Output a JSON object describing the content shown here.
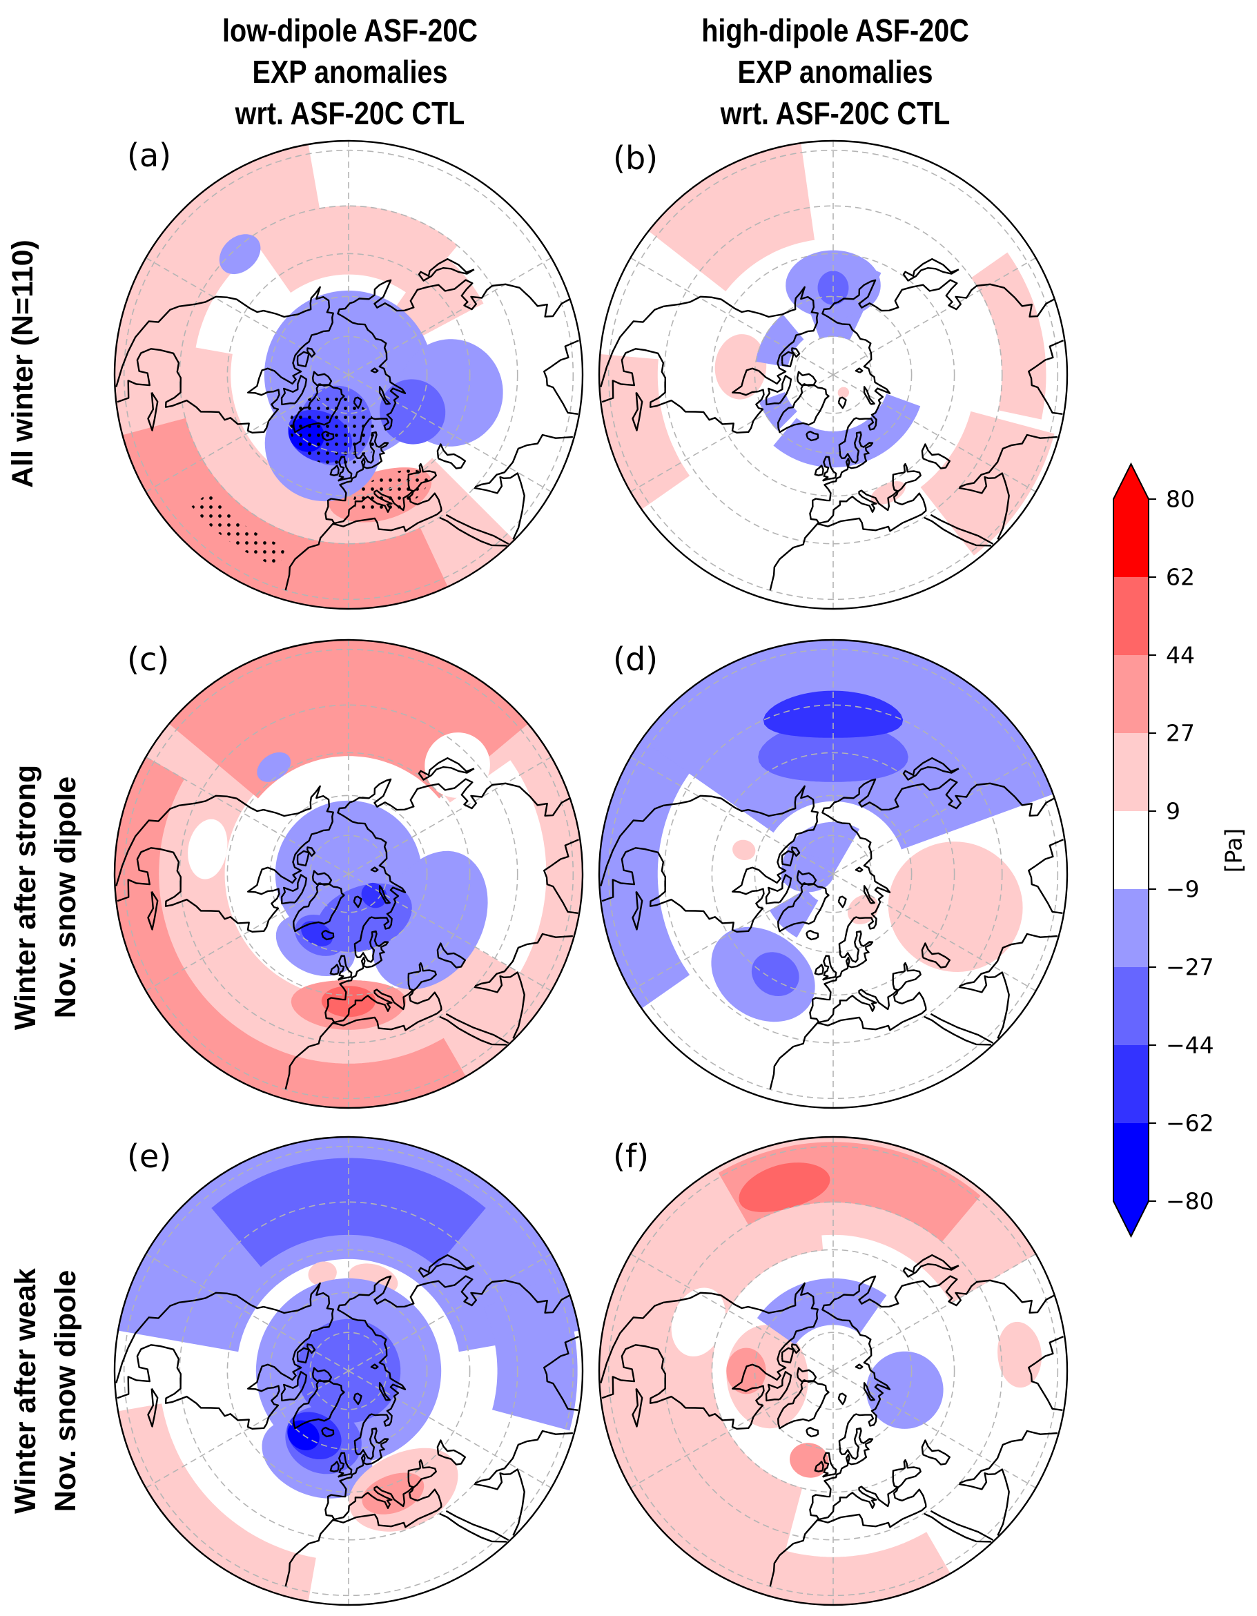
{
  "figure": {
    "column_titles": [
      {
        "lines": [
          "low-dipole ASF-20C",
          "EXP anomalies",
          "wrt. ASF-20C CTL"
        ]
      },
      {
        "lines": [
          "high-dipole ASF-20C",
          "EXP anomalies",
          "wrt. ASF-20C CTL"
        ]
      }
    ],
    "row_labels": [
      {
        "lines": [
          "All winter (N=110)"
        ]
      },
      {
        "lines": [
          "Winter after strong",
          "Nov. snow dipole"
        ]
      },
      {
        "lines": [
          "Winter after weak",
          "Nov. snow dipole"
        ]
      }
    ]
  },
  "chart_data": {
    "type": "heatmap",
    "subtype": "north-polar stereographic anomaly maps (2 columns x 3 rows)",
    "title": "EXP anomalies wrt. ASF-20C CTL",
    "colorbar": {
      "levels": [
        -80,
        -62,
        -44,
        -27,
        -9,
        9,
        27,
        44,
        62,
        80
      ],
      "tick_labels": [
        "−80",
        "−62",
        "−44",
        "−27",
        "−9",
        "9",
        "27",
        "44",
        "62",
        "80"
      ],
      "colors": [
        "#0000ff",
        "#3333ff",
        "#6666ff",
        "#9999ff",
        "#ffffff",
        "#ffcccc",
        "#ff9999",
        "#ff6666",
        "#ff0000"
      ],
      "extend": "both",
      "unit_label": "[Pa]",
      "orientation": "vertical",
      "placement": "right"
    },
    "projection": {
      "type": "north-polar-stereographic",
      "greenwich_direction": "down",
      "boundary_latitude": 12.7
    },
    "gridlines": {
      "latitudes": [
        15,
        30,
        45,
        60,
        75
      ],
      "longitudes": [
        0,
        60,
        120,
        180,
        240,
        300
      ],
      "style": "dashed",
      "color": "#b4b4b4"
    },
    "stipple_meaning": "statistically significant",
    "panels": [
      {
        "letter": "(a)",
        "row": 0,
        "col": 0,
        "anomalies": [
          {
            "kind": "band",
            "lon": [
              -170,
              -100
            ],
            "lat": [
              12,
              34
            ],
            "value": 18
          },
          {
            "kind": "band",
            "lon": [
              -100,
              45
            ],
            "lat": [
              12,
              46
            ],
            "value": 18
          },
          {
            "kind": "band",
            "lon": [
              -75,
              25
            ],
            "lat": [
              12,
              30
            ],
            "value": 35
          },
          {
            "kind": "blob",
            "lon": 15,
            "lat": 44,
            "dlat": 8,
            "dlon": 24,
            "value": 35
          },
          {
            "kind": "band",
            "lon": [
              140,
              215
            ],
            "lat": [
              30,
              52
            ],
            "value": 18
          },
          {
            "kind": "band",
            "lon": [
              118,
              145
            ],
            "lat": [
              35,
              58
            ],
            "value": 18
          },
          {
            "kind": "band",
            "lon": [
              -180,
              180
            ],
            "lat": [
              58,
              90
            ],
            "value": -18
          },
          {
            "kind": "blob",
            "lon": -20,
            "lat": 62,
            "dlat": 20,
            "dlon": 45,
            "value": -18
          },
          {
            "kind": "blob",
            "lon": 80,
            "lat": 52,
            "dlat": 18,
            "dlon": 30,
            "value": -18
          },
          {
            "kind": "blob",
            "lon": -138,
            "lat": 32,
            "dlat": 5,
            "dlon": 8,
            "value": -18
          },
          {
            "kind": "blob",
            "lon": -15,
            "lat": 70,
            "dlat": 15,
            "dlon": 40,
            "value": -35
          },
          {
            "kind": "blob",
            "lon": 60,
            "lat": 62,
            "dlat": 12,
            "dlon": 25,
            "value": -35
          },
          {
            "kind": "blob",
            "lon": -25,
            "lat": 64,
            "dlat": 9,
            "dlon": 28,
            "value": -53
          },
          {
            "kind": "blob",
            "lon": -35,
            "lat": 62,
            "dlat": 6,
            "dlon": 14,
            "value": -71
          }
        ],
        "stippling": [
          {
            "kind": "blob",
            "lon": -15,
            "lat": 68,
            "dlat": 13,
            "dlon": 45
          },
          {
            "kind": "blob",
            "lon": 20,
            "lat": 44,
            "dlat": 6,
            "dlon": 18
          },
          {
            "kind": "band",
            "lon": [
              -50,
              -20
            ],
            "lat": [
              20,
              26
            ]
          }
        ]
      },
      {
        "letter": "(b)",
        "row": 0,
        "col": 1,
        "anomalies": [
          {
            "kind": "band",
            "lon": [
              -172,
              -128
            ],
            "lat": [
              12,
              40
            ],
            "value": 18
          },
          {
            "kind": "band",
            "lon": [
              -95,
              -55
            ],
            "lat": [
              12,
              28
            ],
            "value": 18
          },
          {
            "kind": "blob",
            "lon": -95,
            "lat": 55,
            "dlat": 9,
            "dlon": 20,
            "value": 18
          },
          {
            "kind": "band",
            "lon": [
              38,
              75
            ],
            "lat": [
              14,
              38
            ],
            "value": 18
          },
          {
            "kind": "band",
            "lon": [
              78,
              125
            ],
            "lat": [
              18,
              30
            ],
            "value": 18
          },
          {
            "kind": "blob",
            "lon": 25,
            "lat": 42,
            "dlat": 3,
            "dlon": 8,
            "value": 18
          },
          {
            "kind": "band",
            "lon": [
              155,
              200
            ],
            "lat": [
              48,
              75
            ],
            "value": -18
          },
          {
            "kind": "blob",
            "lon": 180,
            "lat": 56,
            "dlat": 12,
            "dlon": 30,
            "value": -18
          },
          {
            "kind": "band",
            "lon": [
              -140,
              -100
            ],
            "lat": [
              60,
              72
            ],
            "value": -18
          },
          {
            "kind": "band",
            "lon": [
              -40,
              70
            ],
            "lat": [
              55,
              68
            ],
            "value": -18
          },
          {
            "kind": "band",
            "lon": [
              -70,
              -45
            ],
            "lat": [
              60,
              70
            ],
            "value": -18
          },
          {
            "kind": "blob",
            "lon": 180,
            "lat": 57,
            "dlat": 6,
            "dlon": 10,
            "value": -35
          },
          {
            "kind": "blob",
            "lon": 30,
            "lat": 82,
            "dlat": 2,
            "dlon": 15,
            "value": 18
          }
        ],
        "stippling": []
      },
      {
        "letter": "(c)",
        "row": 1,
        "col": 0,
        "anomalies": [
          {
            "kind": "band",
            "lon": [
              -180,
              180
            ],
            "lat": [
              12,
              44
            ],
            "value": 18
          },
          {
            "kind": "band",
            "lon": [
              130,
              230
            ],
            "lat": [
              12,
              46
            ],
            "value": 35
          },
          {
            "kind": "band",
            "lon": [
              -120,
              30
            ],
            "lat": [
              12,
              24
            ],
            "value": 35
          },
          {
            "kind": "blob",
            "lon": 0,
            "lat": 42,
            "dlat": 8,
            "dlon": 25,
            "value": 35
          },
          {
            "kind": "blob",
            "lon": 0,
            "lat": 43,
            "dlat": 5,
            "dlon": 12,
            "value": 53
          },
          {
            "kind": "blob",
            "lon": -100,
            "lat": 38,
            "dlat": 6,
            "dlon": 12,
            "value": 0
          },
          {
            "kind": "blob",
            "lon": 135,
            "lat": 35,
            "dlat": 10,
            "dlon": 12,
            "value": 0
          },
          {
            "kind": "band",
            "lon": [
              60,
              125
            ],
            "lat": [
              22,
              46
            ],
            "value": 0
          },
          {
            "kind": "band",
            "lon": [
              -180,
              180
            ],
            "lat": [
              62,
              90
            ],
            "value": -18
          },
          {
            "kind": "blob",
            "lon": 60,
            "lat": 55,
            "dlat": 18,
            "dlon": 45,
            "value": -18
          },
          {
            "kind": "blob",
            "lon": -25,
            "lat": 60,
            "dlat": 10,
            "dlon": 30,
            "value": -18
          },
          {
            "kind": "blob",
            "lon": -145,
            "lat": 42,
            "dlat": 4,
            "dlon": 8,
            "value": -18
          },
          {
            "kind": "blob",
            "lon": 20,
            "lat": 72,
            "dlat": 12,
            "dlon": 60,
            "value": -35
          },
          {
            "kind": "blob",
            "lon": -25,
            "lat": 64,
            "dlat": 7,
            "dlon": 22,
            "value": -35
          },
          {
            "kind": "blob",
            "lon": 50,
            "lat": 77,
            "dlat": 5,
            "dlon": 20,
            "value": -53
          },
          {
            "kind": "blob",
            "lon": -28,
            "lat": 64,
            "dlat": 4,
            "dlon": 14,
            "value": -53
          }
        ],
        "stippling": []
      },
      {
        "letter": "(d)",
        "row": 1,
        "col": 1,
        "anomalies": [
          {
            "kind": "band",
            "lon": [
              110,
              235
            ],
            "lat": [
              12,
              62
            ],
            "value": -18
          },
          {
            "kind": "band",
            "lon": [
              -125,
              -55
            ],
            "lat": [
              12,
              28
            ],
            "value": -18
          },
          {
            "kind": "blob",
            "lon": -35,
            "lat": 45,
            "dlat": 14,
            "dlon": 26,
            "value": -18
          },
          {
            "kind": "blob",
            "lon": -30,
            "lat": 47,
            "dlat": 7,
            "dlon": 12,
            "value": -35
          },
          {
            "kind": "blob",
            "lon": 180,
            "lat": 45,
            "dlat": 10,
            "dlon": 35,
            "value": -35
          },
          {
            "kind": "blob",
            "lon": 180,
            "lat": 33,
            "dlat": 7,
            "dlon": 25,
            "value": -53
          },
          {
            "kind": "band",
            "lon": [
              150,
              280
            ],
            "lat": [
              70,
              90
            ],
            "value": -18
          },
          {
            "kind": "blob",
            "lon": -90,
            "lat": 80,
            "dlat": 10,
            "dlon": 40,
            "value": -18
          },
          {
            "kind": "band",
            "lon": [
              -60,
              -30
            ],
            "lat": [
              62,
              78
            ],
            "value": -18
          },
          {
            "kind": "blob",
            "lon": 75,
            "lat": 45,
            "dlat": 22,
            "dlon": 30,
            "value": 18
          },
          {
            "kind": "blob",
            "lon": 40,
            "lat": 72,
            "dlat": 5,
            "dlon": 20,
            "value": 18
          },
          {
            "kind": "blob",
            "lon": -105,
            "lat": 55,
            "dlat": 4,
            "dlon": 6,
            "value": 18
          }
        ],
        "stippling": []
      },
      {
        "letter": "(e)",
        "row": 2,
        "col": 0,
        "anomalies": [
          {
            "kind": "band",
            "lon": [
              100,
              260
            ],
            "lat": [
              12,
              48
            ],
            "value": -18
          },
          {
            "kind": "band",
            "lon": [
              140,
              220
            ],
            "lat": [
              18,
              40
            ],
            "value": -35
          },
          {
            "kind": "blob",
            "lon": 165,
            "lat": 54,
            "dlat": 5,
            "dlon": 15,
            "value": 18
          },
          {
            "kind": "blob",
            "lon": -165,
            "lat": 52,
            "dlat": 4,
            "dlon": 8,
            "value": 18
          },
          {
            "kind": "band",
            "lon": [
              75,
              115
            ],
            "lat": [
              14,
              36
            ],
            "value": -18
          },
          {
            "kind": "band",
            "lon": [
              -180,
              180
            ],
            "lat": [
              55,
              90
            ],
            "value": -18
          },
          {
            "kind": "blob",
            "lon": -20,
            "lat": 55,
            "dlat": 13,
            "dlon": 35,
            "value": -18
          },
          {
            "kind": "band",
            "lon": [
              -180,
              180
            ],
            "lat": [
              70,
              90
            ],
            "value": -35
          },
          {
            "kind": "blob",
            "lon": -20,
            "lat": 62,
            "dlat": 12,
            "dlon": 30,
            "value": -35
          },
          {
            "kind": "blob",
            "lon": -28,
            "lat": 62,
            "dlat": 8,
            "dlon": 22,
            "value": -53
          },
          {
            "kind": "blob",
            "lon": -35,
            "lat": 60,
            "dlat": 5,
            "dlon": 12,
            "value": -71
          },
          {
            "kind": "blob",
            "lon": 25,
            "lat": 42,
            "dlat": 12,
            "dlon": 25,
            "value": 18
          },
          {
            "kind": "blob",
            "lon": 20,
            "lat": 42,
            "dlat": 6,
            "dlon": 14,
            "value": 35
          },
          {
            "kind": "band",
            "lon": [
              -80,
              -10
            ],
            "lat": [
              12,
              24
            ],
            "value": 18
          }
        ],
        "stippling": []
      },
      {
        "letter": "(f)",
        "row": 2,
        "col": 1,
        "anomalies": [
          {
            "kind": "band",
            "lon": [
              -175,
              -15
            ],
            "lat": [
              12,
              45
            ],
            "value": 18
          },
          {
            "kind": "band",
            "lon": [
              -20,
              30
            ],
            "lat": [
              12,
              25
            ],
            "value": 18
          },
          {
            "kind": "blob",
            "lon": -110,
            "lat": 38,
            "dlat": 8,
            "dlon": 14,
            "value": 0
          },
          {
            "kind": "band",
            "lon": [
              120,
              230
            ],
            "lat": [
              12,
              40
            ],
            "value": 18
          },
          {
            "kind": "band",
            "lon": [
              140,
              210
            ],
            "lat": [
              14,
              30
            ],
            "value": 35
          },
          {
            "kind": "blob",
            "lon": -165,
            "lat": 24,
            "dlat": 6,
            "dlon": 14,
            "value": 53
          },
          {
            "kind": "blob",
            "lon": -85,
            "lat": 65,
            "dlat": 15,
            "dlon": 45,
            "value": 18
          },
          {
            "kind": "blob",
            "lon": -90,
            "lat": 57,
            "dlat": 7,
            "dlon": 15,
            "value": 35
          },
          {
            "kind": "blob",
            "lon": -15,
            "lat": 55,
            "dlat": 6,
            "dlon": 12,
            "value": 35
          },
          {
            "kind": "band",
            "lon": [
              145,
              235
            ],
            "lat": [
              55,
              72
            ],
            "value": -18
          },
          {
            "kind": "blob",
            "lon": 75,
            "lat": 62,
            "dlat": 14,
            "dlon": 30,
            "value": -18
          },
          {
            "kind": "blob",
            "lon": 95,
            "lat": 25,
            "dlat": 6,
            "dlon": 10,
            "value": 18
          }
        ],
        "stippling": []
      }
    ]
  }
}
